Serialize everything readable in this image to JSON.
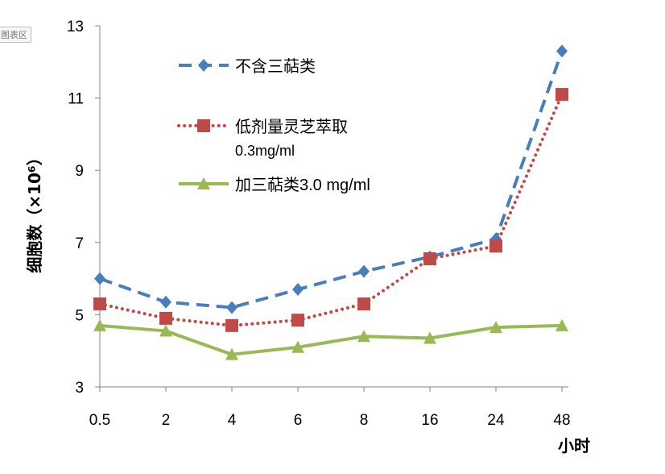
{
  "chart_area_tag": "图表区",
  "chart_data": {
    "type": "line",
    "title": "",
    "ylabel": "细胞数（×10⁶）",
    "xlabel": "小时",
    "categories": [
      "0.5",
      "2",
      "4",
      "6",
      "8",
      "16",
      "24",
      "48"
    ],
    "ylim": [
      3,
      13
    ],
    "yticks": [
      "3",
      "5",
      "7",
      "9",
      "11",
      "13"
    ],
    "grid": false,
    "legend_position": "top-left inside",
    "series": [
      {
        "name": "不含三萜类",
        "name_line2": "",
        "color": "#4a7ebb",
        "style": "dashed",
        "marker": "diamond",
        "values": [
          6.0,
          5.35,
          5.2,
          5.7,
          6.2,
          6.6,
          7.1,
          12.3
        ]
      },
      {
        "name": "低剂量灵芝萃取",
        "name_line2": "0.3mg/ml",
        "color": "#be4b48",
        "style": "dotted",
        "marker": "square",
        "values": [
          5.3,
          4.9,
          4.7,
          4.85,
          5.3,
          6.55,
          6.9,
          11.1
        ]
      },
      {
        "name": "加三萜类3.0 mg/ml",
        "name_line2": "",
        "color": "#98b954",
        "style": "solid",
        "marker": "triangle",
        "values": [
          4.7,
          4.55,
          3.9,
          4.1,
          4.4,
          4.35,
          4.65,
          4.7
        ]
      }
    ]
  }
}
